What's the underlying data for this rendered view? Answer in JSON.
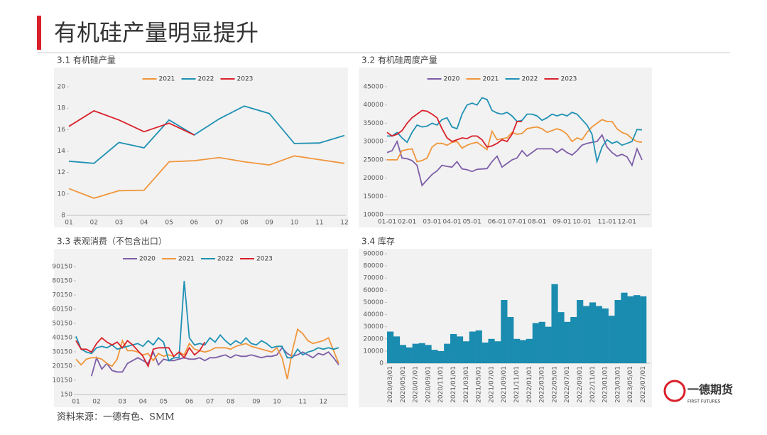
{
  "title": "有机硅产量明显提升",
  "source": "资料来源：一德有色、SMM",
  "logo": {
    "name": "一德期货",
    "sub": "FIRST FUTURES"
  },
  "chart_data": [
    {
      "type": "line",
      "title": "3.1 有机硅产量",
      "categories": [
        "01",
        "02",
        "03",
        "04",
        "05",
        "06",
        "07",
        "08",
        "09",
        "10",
        "11",
        "12"
      ],
      "ylim": [
        8,
        20
      ],
      "yticks": [
        8,
        10,
        12,
        14,
        16,
        18,
        20
      ],
      "grid": false,
      "series": [
        {
          "name": "2021",
          "color": "#f0963c",
          "values": [
            10.5,
            9.6,
            10.3,
            10.35,
            13.0,
            13.1,
            13.4,
            13.0,
            12.7,
            13.55,
            13.2,
            12.85
          ]
        },
        {
          "name": "2022",
          "color": "#1f91b4",
          "values": [
            13.05,
            12.85,
            14.8,
            14.3,
            16.9,
            15.5,
            17.0,
            18.2,
            17.5,
            14.7,
            14.75,
            15.45
          ]
        },
        {
          "name": "2023",
          "color": "#d9202a",
          "values": [
            16.3,
            17.75,
            16.9,
            15.8,
            16.6,
            15.5,
            null,
            null,
            null,
            null,
            null,
            null
          ]
        }
      ]
    },
    {
      "type": "line",
      "title": "3.2 有机硅周度产量",
      "categories": [
        "01-01",
        null,
        null,
        null,
        "02-01",
        null,
        null,
        null,
        null,
        "03-01",
        null,
        null,
        null,
        "04-01",
        null,
        null,
        null,
        "05-01",
        null,
        null,
        null,
        null,
        "06-01",
        null,
        null,
        null,
        "07-01",
        null,
        null,
        null,
        "08-01",
        null,
        null,
        null,
        null,
        "09-01",
        null,
        null,
        null,
        "10-01",
        null,
        null,
        null,
        null,
        "11-01",
        null,
        null,
        null,
        "12-01",
        null,
        null,
        null
      ],
      "ylim": [
        10000,
        45000
      ],
      "yticks": [
        10000,
        15000,
        20000,
        25000,
        30000,
        35000,
        40000,
        45000
      ],
      "grid": false,
      "series": [
        {
          "name": "2020",
          "color": "#7e5ea8",
          "values": [
            27000,
            27500,
            30000,
            25500,
            25300,
            24800,
            23500,
            18000,
            19500,
            21000,
            22000,
            23500,
            23200,
            23000,
            24500,
            22500,
            22300,
            21800,
            22400,
            22500,
            22600,
            24500,
            26000,
            23000,
            24000,
            25000,
            25500,
            27500,
            26000,
            27000,
            28000,
            28000,
            28000,
            28000,
            27000,
            28000,
            27000,
            26300,
            27500,
            29000,
            29500,
            29800,
            30000,
            31800,
            28500,
            27000,
            26000,
            26500,
            25800,
            23500,
            28000,
            25000
          ]
        },
        {
          "name": "2021",
          "color": "#f0963c",
          "values": [
            25000,
            25000,
            25000,
            27500,
            27800,
            28000,
            24500,
            24800,
            25500,
            28500,
            29500,
            29500,
            29000,
            29800,
            30000,
            28200,
            29000,
            29500,
            29800,
            28800,
            27800,
            32800,
            30500,
            30800,
            31000,
            32500,
            32000,
            32200,
            33500,
            33800,
            34000,
            33500,
            32500,
            33000,
            33500,
            33000,
            32000,
            30000,
            31000,
            30500,
            32500,
            34000,
            35000,
            36000,
            35500,
            35500,
            33500,
            32500,
            32000,
            30800,
            30000,
            29800
          ]
        },
        {
          "name": "2022",
          "color": "#1f91b4",
          "values": [
            31500,
            31500,
            32500,
            31000,
            29800,
            32500,
            34500,
            34000,
            34200,
            35000,
            34500,
            36000,
            36500,
            34000,
            33500,
            37500,
            40000,
            40500,
            40000,
            42000,
            41500,
            38500,
            37800,
            37500,
            38000,
            37000,
            35500,
            35800,
            37500,
            37500,
            37000,
            35800,
            36500,
            37500,
            37000,
            37500,
            37000,
            38000,
            37500,
            36000,
            34500,
            32000,
            24500,
            28500,
            30500,
            29500,
            30000,
            29000,
            29500,
            30000,
            33300,
            33200
          ]
        },
        {
          "name": "2023",
          "color": "#d9202a",
          "values": [
            32500,
            31500,
            32000,
            33000,
            35000,
            36500,
            37500,
            38500,
            38300,
            37500,
            36500,
            33500,
            31000,
            30000,
            30500,
            31000,
            30800,
            31500,
            31500,
            30500,
            28500,
            28800,
            29500,
            30500,
            30000,
            32000,
            35500,
            35500,
            null,
            null,
            null,
            null,
            null,
            null,
            null,
            null,
            null,
            null,
            null,
            null,
            null,
            null,
            null,
            null,
            null,
            null,
            null,
            null,
            null,
            null,
            null,
            null
          ]
        }
      ]
    },
    {
      "type": "line",
      "title": "3.3 表观消费（不包含出口）",
      "categories": [
        "01",
        null,
        null,
        null,
        "02",
        null,
        null,
        null,
        null,
        "03",
        null,
        null,
        null,
        "04",
        null,
        null,
        null,
        "05",
        null,
        null,
        null,
        null,
        "06",
        null,
        null,
        null,
        "07",
        null,
        null,
        null,
        "08",
        null,
        null,
        null,
        null,
        "09",
        null,
        null,
        null,
        "10",
        null,
        null,
        null,
        null,
        "11",
        null,
        null,
        null,
        "12",
        null,
        null,
        null
      ],
      "ylim": [
        150,
        90150
      ],
      "yticks": [
        150,
        10150,
        20150,
        30150,
        40150,
        50150,
        60150,
        70150,
        80150,
        90150
      ],
      "grid": false,
      "series": [
        {
          "name": "2020",
          "color": "#7e5ea8",
          "values": [
            null,
            null,
            null,
            13000,
            26000,
            18000,
            22000,
            17000,
            16000,
            16000,
            22000,
            24000,
            26000,
            24000,
            22000,
            30000,
            21000,
            25000,
            24000,
            24000,
            25000,
            26000,
            25000,
            25000,
            26000,
            24000,
            26000,
            26000,
            27000,
            28000,
            26000,
            28000,
            27000,
            27000,
            28000,
            27000,
            26000,
            27000,
            27000,
            28000,
            33000,
            29000,
            27000,
            28000,
            30000,
            28000,
            26000,
            29000,
            28000,
            30000,
            26000,
            21000
          ]
        },
        {
          "name": "2021",
          "color": "#f0963c",
          "values": [
            25000,
            21000,
            25000,
            26000,
            26000,
            25000,
            22000,
            20000,
            25000,
            38000,
            31000,
            31000,
            30000,
            28000,
            29000,
            24000,
            29000,
            27000,
            28000,
            27000,
            30000,
            28000,
            36000,
            32000,
            31000,
            30000,
            31000,
            33000,
            33000,
            33000,
            32000,
            34000,
            35000,
            36000,
            34000,
            33000,
            32000,
            31000,
            30000,
            33000,
            26000,
            11000,
            31000,
            46000,
            43000,
            38000,
            36000,
            37000,
            38000,
            40000,
            31000,
            22000
          ]
        },
        {
          "name": "2022",
          "color": "#1f91b4",
          "values": [
            41000,
            32000,
            30000,
            29000,
            33000,
            34000,
            33000,
            35000,
            32000,
            33000,
            34000,
            35000,
            36000,
            34000,
            38000,
            35000,
            40000,
            37000,
            24000,
            26000,
            26000,
            80000,
            40000,
            35000,
            36000,
            35000,
            40000,
            37000,
            42000,
            38000,
            35000,
            38000,
            36000,
            40000,
            36000,
            35000,
            38000,
            36000,
            33000,
            34000,
            34000,
            26000,
            26000,
            32000,
            28000,
            30000,
            31000,
            33000,
            32000,
            33000,
            32000,
            33000
          ]
        },
        {
          "name": "2023",
          "color": "#d9202a",
          "values": [
            38000,
            32000,
            32000,
            30000,
            36000,
            40000,
            37000,
            35000,
            37000,
            33000,
            38000,
            35000,
            31000,
            27000,
            20000,
            32000,
            33000,
            33000,
            33000,
            27000,
            30000,
            26000,
            33000,
            28000,
            31000,
            37000,
            null,
            null,
            null,
            null,
            null,
            null,
            null,
            null,
            null,
            null,
            null,
            null,
            null,
            null,
            null,
            null,
            null,
            null,
            null,
            null,
            null,
            null,
            null,
            null,
            null,
            null
          ]
        }
      ]
    },
    {
      "type": "bar",
      "title": "3.4 库存",
      "color": "#1a8cb0",
      "categories": [
        "2020/03/01",
        null,
        "2020/05/01",
        null,
        "2020/07/01",
        null,
        "2020/09/01",
        null,
        "2020/11/01",
        null,
        "2021/01/01",
        null,
        "2021/03/01",
        null,
        "2021/05/01",
        null,
        "2021/07/01",
        null,
        "2021/09/01",
        null,
        "2021/11/01",
        null,
        "2022/01/01",
        null,
        "2022/03/01",
        null,
        "2022/05/01",
        null,
        "2022/07/01",
        null,
        "2022/09/01",
        null,
        "2022/11/01",
        null,
        "2023/01/01",
        null,
        "2023/03/01",
        null,
        "2023/05/01",
        null,
        "2023/07/01"
      ],
      "values": [
        26000,
        22000,
        15000,
        13000,
        16000,
        16500,
        15000,
        11000,
        10000,
        16000,
        24000,
        22000,
        18000,
        26000,
        27000,
        17000,
        20000,
        18000,
        52000,
        38000,
        20000,
        19000,
        20000,
        33000,
        34000,
        30000,
        65000,
        42000,
        34000,
        38000,
        52000,
        47000,
        50000,
        47000,
        45000,
        39000,
        52000,
        58000,
        55000,
        56000,
        55000
      ],
      "ylim": [
        0,
        90000
      ],
      "yticks": [
        0,
        10000,
        20000,
        30000,
        40000,
        50000,
        60000,
        70000,
        80000,
        90000
      ],
      "grid": false
    }
  ]
}
